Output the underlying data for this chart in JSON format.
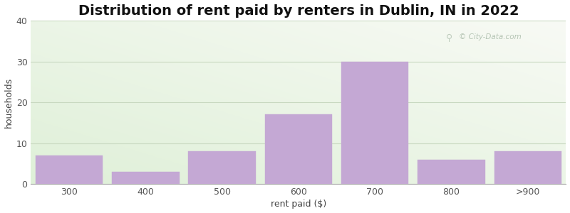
{
  "title": "Distribution of rent paid by renters in Dublin, IN in 2022",
  "xlabel": "rent paid ($)",
  "ylabel": "households",
  "categories": [
    "300",
    "400",
    "500",
    "600",
    "700",
    "800",
    ">900"
  ],
  "values": [
    7,
    3,
    8,
    17,
    30,
    6,
    8
  ],
  "bar_color": "#c4a8d4",
  "ylim": [
    0,
    40
  ],
  "yticks": [
    0,
    10,
    20,
    30,
    40
  ],
  "bg_color_green": "#dff0d8",
  "bg_color_white": "#f5f8f2",
  "grid_color": "#c8d8c0",
  "title_fontsize": 14,
  "label_fontsize": 9,
  "tick_fontsize": 9,
  "watermark": "City-Data.com"
}
